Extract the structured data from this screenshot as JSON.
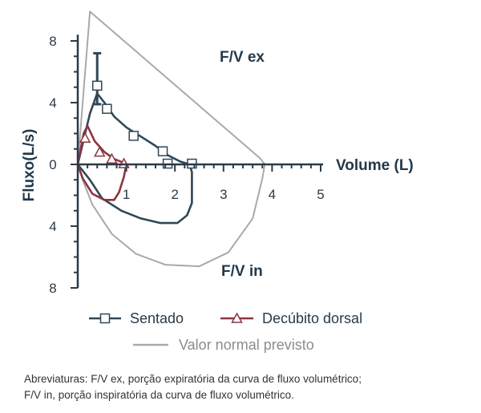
{
  "chart_data": {
    "type": "line",
    "xlabel": "Volume (L)",
    "ylabel": "Fluxo(L/s)",
    "x_ticks": [
      "1",
      "2",
      "3",
      "4",
      "5"
    ],
    "y_ticks_positive": [
      "8",
      "4",
      "0"
    ],
    "y_ticks_negative": [
      "4",
      "8"
    ],
    "xlim": [
      0,
      5
    ],
    "ylim": [
      -8,
      8
    ],
    "annotations": {
      "expiratory": "F/V ex",
      "inspiratory": "F/V in"
    },
    "series": [
      {
        "name": "Valor normal previsto",
        "color": "#a9a9a9",
        "marker": "none",
        "x": [
          0.0,
          0.25,
          3.75,
          3.85,
          3.8,
          3.6,
          3.1,
          2.5,
          1.8,
          1.2,
          0.7,
          0.3,
          0.1,
          0.0
        ],
        "y": [
          0.0,
          9.9,
          0.4,
          0.0,
          -0.9,
          -3.5,
          -5.7,
          -6.6,
          -6.5,
          -5.8,
          -4.5,
          -2.6,
          -1.0,
          0.0
        ]
      },
      {
        "name": "Sentado",
        "color": "#2f4858",
        "marker": "square",
        "x": [
          0.0,
          0.25,
          0.4,
          0.55,
          0.75,
          1.0,
          1.3,
          1.6,
          1.85,
          2.1,
          2.3,
          2.35,
          2.35,
          2.25,
          2.05,
          1.7,
          1.3,
          0.9,
          0.5,
          0.25,
          0.0
        ],
        "y": [
          0.0,
          3.3,
          4.6,
          4.0,
          3.1,
          2.4,
          1.8,
          1.2,
          0.6,
          0.2,
          0.0,
          -0.5,
          -2.5,
          -3.3,
          -3.8,
          -3.8,
          -3.5,
          -3.0,
          -2.2,
          -1.0,
          0.0
        ],
        "marker_x": [
          0.4,
          0.6,
          1.15,
          1.75,
          1.85,
          2.35
        ],
        "marker_y": [
          5.1,
          3.6,
          1.85,
          0.85,
          0.05,
          0.05
        ],
        "error_bar": {
          "x": 0.4,
          "y_low": 3.9,
          "y_high": 7.2
        }
      },
      {
        "name": "Decúbito dorsal",
        "color": "#8b3540",
        "marker": "triangle",
        "x": [
          0.0,
          0.12,
          0.2,
          0.35,
          0.55,
          0.75,
          0.95,
          1.0,
          0.95,
          0.85,
          0.75,
          0.55,
          0.3,
          0.1,
          0.0
        ],
        "y": [
          0.0,
          2.0,
          2.5,
          1.5,
          0.8,
          0.35,
          0.1,
          0.0,
          -0.8,
          -1.8,
          -2.3,
          -2.3,
          -1.9,
          -0.9,
          0.0
        ],
        "marker_x": [
          0.15,
          0.45,
          0.7,
          0.95
        ],
        "marker_y": [
          1.7,
          0.8,
          0.35,
          0.05
        ]
      }
    ],
    "legend": [
      {
        "label": "Sentado",
        "color": "#2f4858",
        "marker": "square"
      },
      {
        "label": "Decúbito dorsal",
        "color": "#8b3540",
        "marker": "triangle"
      },
      {
        "label": "Valor normal previsto",
        "color": "#a9a9a9",
        "marker": "none"
      }
    ]
  },
  "footnote": {
    "line1": "Abreviaturas: F/V ex, porção expiratória da curva de fluxo volumétrico;",
    "line2": "F/V in, porção inspiratória da curva de fluxo volumétrico."
  }
}
